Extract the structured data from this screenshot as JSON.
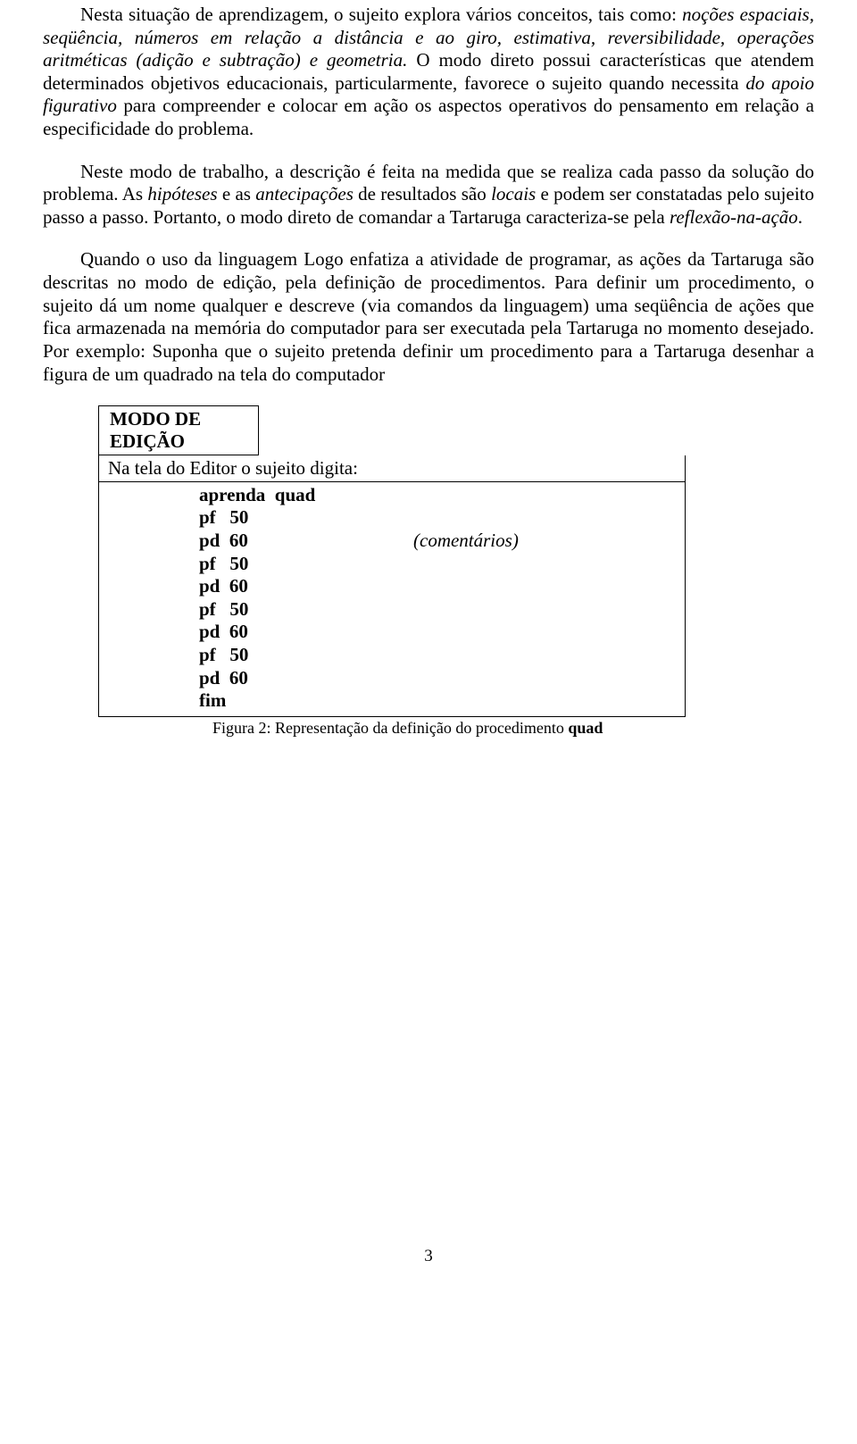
{
  "paragraphs": {
    "p1_a": "Nesta situação de aprendizagem, o sujeito explora vários conceitos, tais como: ",
    "p1_b": "noções espaciais, seqüência, números em relação a distância e ao giro, estimativa, reversibilidade, operações aritméticas (adição e subtração) e geometria.",
    "p1_c": " O modo direto possui características que atendem determinados objetivos educacionais, particularmente, favorece o sujeito quando necessita ",
    "p1_d": "do apoio figurativo",
    "p1_e": " para compreender e colocar em ação os aspectos operativos do pensamento em relação a especificidade do problema.",
    "p2_a": "Neste modo de trabalho, a descrição é feita na medida que se realiza cada passo da solução do problema. As ",
    "p2_b": "hipóteses",
    "p2_c": " e as ",
    "p2_d": "antecipações",
    "p2_e": " de resultados são ",
    "p2_f": "locais",
    "p2_g": " e podem ser constatadas pelo sujeito passo a passo. Portanto, o modo direto de comandar a Tartaruga caracteriza-se pela ",
    "p2_h": "reflexão-na-ação",
    "p2_i": ".",
    "p3": "Quando o uso da linguagem Logo enfatiza a atividade de programar, as ações da Tartaruga são descritas no modo de edição, pela definição de procedimentos. Para definir um procedimento, o sujeito dá um nome qualquer e descreve (via comandos da linguagem) uma seqüência de ações que fica armazenada na memória do computador para ser executada pela Tartaruga no momento desejado. Por exemplo: Suponha que o sujeito pretenda definir um procedimento para a Tartaruga desenhar a figura de um quadrado na tela do computador"
  },
  "table": {
    "header_l1": "MODO DE",
    "header_l2": "EDIÇÃO",
    "subheader": "Na tela do Editor o sujeito digita:",
    "code": {
      "l1": "aprenda  quad",
      "l2": "pf   50",
      "l3_left": "pd  60",
      "l3_right": "(comentários)",
      "l4": "pf   50",
      "l5": "pd  60",
      "l6": "pf   50",
      "l7": "pd  60",
      "l8": "pf   50",
      "l9": "pd  60",
      "l10": "fim"
    }
  },
  "figure_caption_a": "Figura 2: Representação da definição do procedimento ",
  "figure_caption_b": "quad",
  "page_number": "3"
}
